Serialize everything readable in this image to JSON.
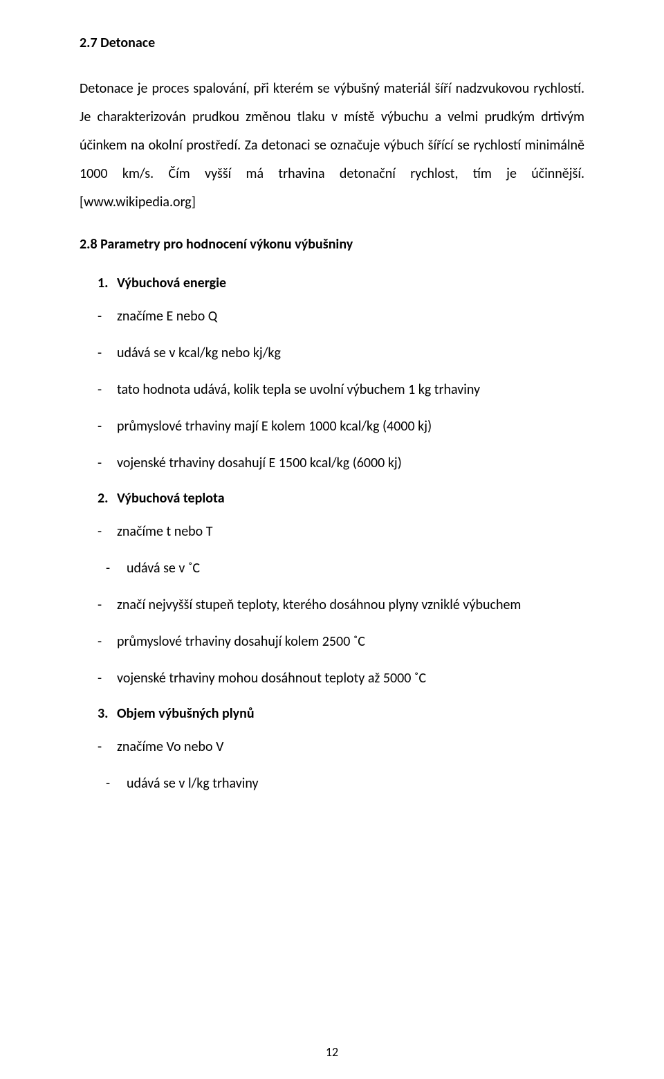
{
  "page": {
    "number": "12",
    "background_color": "#ffffff",
    "text_color": "#000000",
    "font_family": "Calibri",
    "body_fontsize_pt": 15,
    "line_height": 2.05
  },
  "section27": {
    "heading": "2.7 Detonace",
    "paragraph": "Detonace je proces spalování, při kterém se výbušný materiál šíří nadzvukovou rychlostí. Je charakterizován prudkou změnou tlaku v místě výbuchu a velmi prudkým drtivým účinkem na okolní prostředí. Za detonaci se označuje výbuch šířící se rychlostí minimálně 1000 km/s. Čím vyšší má trhavina detonační rychlost, tím je účinnější. [www.wikipedia.org]"
  },
  "section28": {
    "heading": "2.8 Parametry pro hodnocení výkonu výbušniny",
    "params": [
      {
        "num": "1.",
        "title": "Výbuchová energie",
        "indent": 1,
        "items": [
          "značíme E nebo Q",
          "udává se v kcal/kg nebo kj/kg",
          "tato hodnota udává, kolik tepla se uvolní výbuchem 1 kg trhaviny",
          "průmyslové trhaviny mají E kolem 1000 kcal/kg (4000 kj)",
          "vojenské trhaviny dosahují E 1500 kcal/kg (6000 kj)"
        ]
      },
      {
        "num": "2.",
        "title": "Výbuchová teplota",
        "indent": 1,
        "items_first": [
          "značíme t nebo T"
        ],
        "items_indent2": [
          "udává se v ˚C"
        ],
        "items_rest": [
          "značí nejvyšší stupeň teploty, kterého dosáhnou plyny vzniklé výbuchem",
          "průmyslové trhaviny dosahují kolem 2500 ˚C",
          "vojenské trhaviny mohou dosáhnout teploty až 5000 ˚C"
        ]
      },
      {
        "num": "3.",
        "title": "Objem výbušných plynů",
        "indent": 1,
        "items_first": [
          "značíme Vo nebo V"
        ],
        "items_indent2": [
          "udává se v l/kg trhaviny"
        ]
      }
    ]
  }
}
